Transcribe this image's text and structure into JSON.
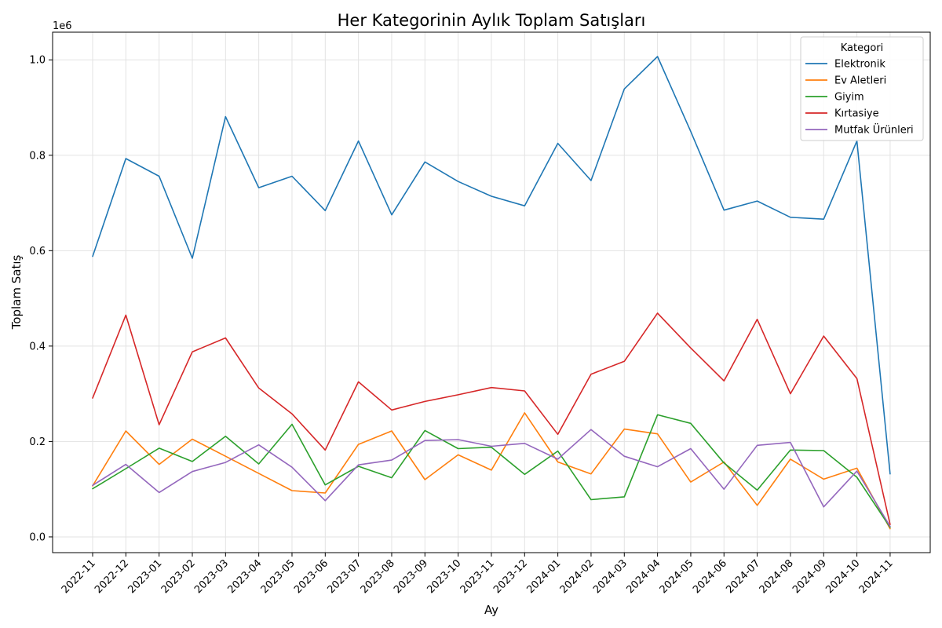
{
  "chart_data": {
    "type": "line",
    "title": "Her Kategorinin Aylık Toplam Satışları",
    "xlabel": "Ay",
    "ylabel": "Toplam Satış",
    "y_multiplier_label": "1e6",
    "ylim": [
      -0.033,
      1.058
    ],
    "yticks": [
      0.0,
      0.2,
      0.4,
      0.6,
      0.8,
      1.0
    ],
    "ytick_labels": [
      "0.0",
      "0.2",
      "0.4",
      "0.6",
      "0.8",
      "1.0"
    ],
    "grid": true,
    "legend_title": "Kategori",
    "legend_position": "top-right",
    "x": [
      "2022-11",
      "2022-12",
      "2023-01",
      "2023-02",
      "2023-03",
      "2023-04",
      "2023-05",
      "2023-06",
      "2023-07",
      "2023-08",
      "2023-09",
      "2023-10",
      "2023-11",
      "2023-12",
      "2024-01",
      "2024-02",
      "2024-03",
      "2024-04",
      "2024-05",
      "2024-06",
      "2024-07",
      "2024-08",
      "2024-09",
      "2024-10",
      "2024-11"
    ],
    "series": [
      {
        "name": "Elektronik",
        "color": "#1f77b4",
        "values": [
          0.588,
          0.793,
          0.756,
          0.584,
          0.881,
          0.732,
          0.756,
          0.684,
          0.83,
          0.675,
          0.786,
          0.745,
          0.714,
          0.694,
          0.825,
          0.747,
          0.939,
          1.007,
          0.85,
          0.685,
          0.704,
          0.67,
          0.666,
          0.83,
          0.132
        ]
      },
      {
        "name": "Ev Aletleri",
        "color": "#ff7f0e",
        "values": [
          0.107,
          0.222,
          0.152,
          0.205,
          0.169,
          0.133,
          0.097,
          0.092,
          0.194,
          0.222,
          0.12,
          0.172,
          0.14,
          0.26,
          0.157,
          0.132,
          0.226,
          0.216,
          0.115,
          0.157,
          0.066,
          0.163,
          0.121,
          0.144,
          0.017
        ]
      },
      {
        "name": "Giyim",
        "color": "#2ca02c",
        "values": [
          0.101,
          0.143,
          0.186,
          0.158,
          0.211,
          0.153,
          0.236,
          0.109,
          0.148,
          0.124,
          0.223,
          0.185,
          0.188,
          0.131,
          0.18,
          0.078,
          0.084,
          0.256,
          0.238,
          0.155,
          0.098,
          0.182,
          0.181,
          0.125,
          0.02
        ]
      },
      {
        "name": "Kırtasiye",
        "color": "#d62728",
        "values": [
          0.291,
          0.465,
          0.235,
          0.388,
          0.417,
          0.312,
          0.258,
          0.182,
          0.325,
          0.266,
          0.284,
          0.298,
          0.313,
          0.306,
          0.215,
          0.341,
          0.368,
          0.469,
          0.396,
          0.327,
          0.456,
          0.3,
          0.421,
          0.332,
          0.026
        ]
      },
      {
        "name": "Mutfak Ürünleri",
        "color": "#9467bd",
        "values": [
          0.108,
          0.152,
          0.093,
          0.137,
          0.156,
          0.193,
          0.146,
          0.076,
          0.151,
          0.161,
          0.202,
          0.204,
          0.19,
          0.196,
          0.163,
          0.225,
          0.169,
          0.147,
          0.185,
          0.1,
          0.192,
          0.198,
          0.063,
          0.138,
          0.022
        ]
      }
    ]
  }
}
